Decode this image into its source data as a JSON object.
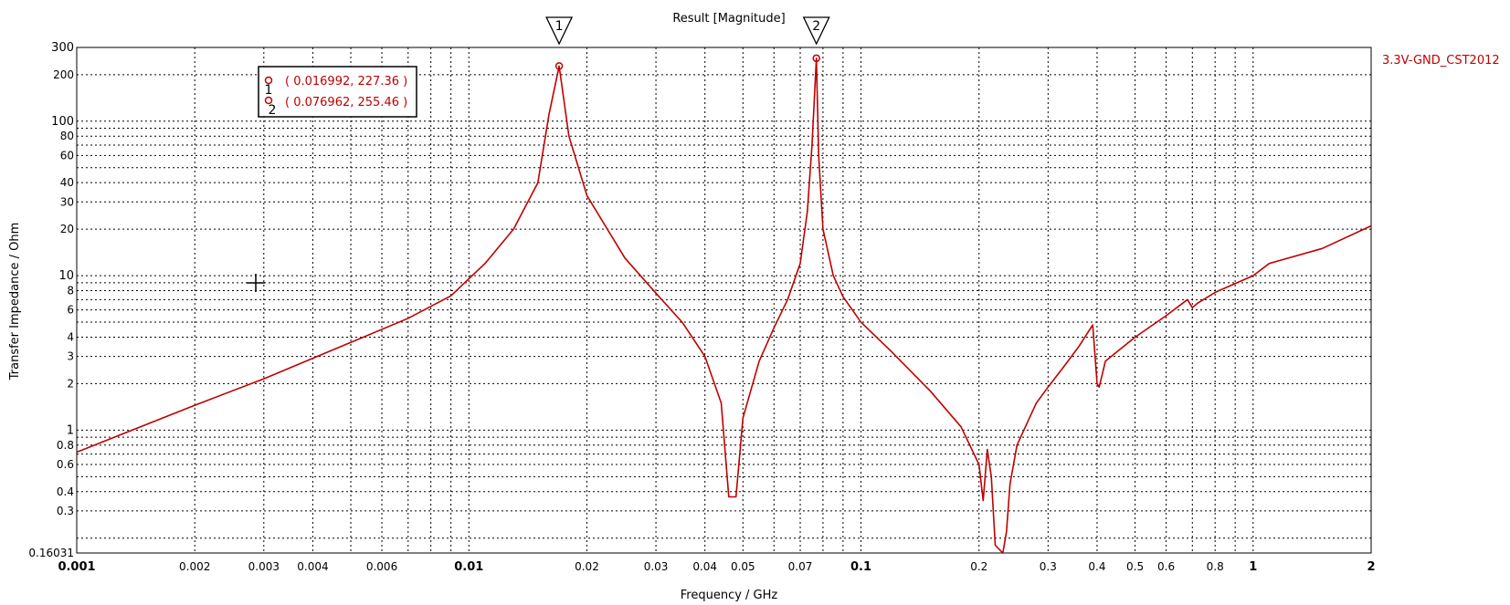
{
  "chart_data": {
    "type": "line",
    "title": "Result [Magnitude]",
    "xlabel": "Frequency / GHz",
    "ylabel": "Transfer Impedance / Ohm",
    "x_scale": "log",
    "y_scale": "log",
    "xlim": [
      0.001,
      2
    ],
    "ylim": [
      0.16031,
      300
    ],
    "grid": true,
    "x_major_ticks": [
      {
        "value": 0.001,
        "label": "0.001"
      },
      {
        "value": 0.01,
        "label": "0.01"
      },
      {
        "value": 0.1,
        "label": "0.1"
      },
      {
        "value": 1,
        "label": "1"
      },
      {
        "value": 2,
        "label": "2"
      }
    ],
    "x_minor_ticks": [
      {
        "value": 0.002,
        "label": "0.002"
      },
      {
        "value": 0.003,
        "label": "0.003"
      },
      {
        "value": 0.004,
        "label": "0.004"
      },
      {
        "value": 0.006,
        "label": "0.006"
      },
      {
        "value": 0.02,
        "label": "0.02"
      },
      {
        "value": 0.03,
        "label": "0.03"
      },
      {
        "value": 0.04,
        "label": "0.04"
      },
      {
        "value": 0.05,
        "label": "0.05"
      },
      {
        "value": 0.07,
        "label": "0.07"
      },
      {
        "value": 0.2,
        "label": "0.2"
      },
      {
        "value": 0.3,
        "label": "0.3"
      },
      {
        "value": 0.4,
        "label": "0.4"
      },
      {
        "value": 0.5,
        "label": "0.5"
      },
      {
        "value": 0.6,
        "label": "0.6"
      },
      {
        "value": 0.8,
        "label": "0.8"
      }
    ],
    "x_gridlines": [
      0.002,
      0.003,
      0.004,
      0.005,
      0.006,
      0.007,
      0.008,
      0.009,
      0.01,
      0.02,
      0.03,
      0.04,
      0.05,
      0.06,
      0.07,
      0.08,
      0.09,
      0.1,
      0.2,
      0.3,
      0.4,
      0.5,
      0.6,
      0.7,
      0.8,
      0.9,
      1
    ],
    "y_major_ticks": [
      {
        "value": 1,
        "label": "1"
      },
      {
        "value": 10,
        "label": "10"
      },
      {
        "value": 100,
        "label": "100"
      },
      {
        "value": 300,
        "label": "300"
      }
    ],
    "y_minor_ticks": [
      {
        "value": 0.16031,
        "label": "0.16031"
      },
      {
        "value": 0.3,
        "label": "0.3"
      },
      {
        "value": 0.4,
        "label": "0.4"
      },
      {
        "value": 0.6,
        "label": "0.6"
      },
      {
        "value": 0.8,
        "label": "0.8"
      },
      {
        "value": 2,
        "label": "2"
      },
      {
        "value": 3,
        "label": "3"
      },
      {
        "value": 4,
        "label": "4"
      },
      {
        "value": 6,
        "label": "6"
      },
      {
        "value": 8,
        "label": "8"
      },
      {
        "value": 20,
        "label": "20"
      },
      {
        "value": 30,
        "label": "30"
      },
      {
        "value": 40,
        "label": "40"
      },
      {
        "value": 60,
        "label": "60"
      },
      {
        "value": 80,
        "label": "80"
      },
      {
        "value": 200,
        "label": "200"
      }
    ],
    "y_gridlines": [
      0.2,
      0.3,
      0.4,
      0.5,
      0.6,
      0.7,
      0.8,
      0.9,
      1,
      2,
      3,
      4,
      5,
      6,
      7,
      8,
      9,
      10,
      20,
      30,
      40,
      50,
      60,
      70,
      80,
      90,
      100,
      200
    ],
    "series": [
      {
        "name": "3.3V-GND_CST2012",
        "color": "#c00000",
        "x": [
          0.001,
          0.002,
          0.003,
          0.005,
          0.007,
          0.009,
          0.011,
          0.013,
          0.015,
          0.016,
          0.016992,
          0.018,
          0.02,
          0.025,
          0.03,
          0.035,
          0.04,
          0.044,
          0.046,
          0.047,
          0.048,
          0.05,
          0.055,
          0.06,
          0.065,
          0.07,
          0.073,
          0.075,
          0.076962,
          0.078,
          0.08,
          0.085,
          0.09,
          0.1,
          0.12,
          0.15,
          0.18,
          0.2,
          0.205,
          0.21,
          0.215,
          0.22,
          0.23,
          0.235,
          0.24,
          0.25,
          0.28,
          0.3,
          0.33,
          0.36,
          0.39,
          0.4,
          0.405,
          0.42,
          0.5,
          0.6,
          0.68,
          0.7,
          0.72,
          0.8,
          1,
          1.1,
          1.5,
          2
        ],
        "y": [
          0.72,
          1.45,
          2.15,
          3.7,
          5.3,
          7.4,
          12,
          20,
          40,
          110,
          227.36,
          80,
          33,
          13,
          7.7,
          5,
          3,
          1.5,
          0.37,
          0.37,
          0.37,
          1.2,
          2.8,
          4.6,
          7,
          12,
          26,
          70,
          255.46,
          60,
          20,
          10,
          7.3,
          5,
          3.2,
          1.8,
          1.05,
          0.6,
          0.35,
          0.75,
          0.5,
          0.18,
          0.16031,
          0.22,
          0.45,
          0.8,
          1.5,
          1.9,
          2.6,
          3.5,
          4.8,
          2,
          1.9,
          2.8,
          4,
          5.5,
          7,
          6.2,
          6.6,
          7.8,
          10,
          12,
          15,
          21
        ]
      }
    ],
    "markers": [
      {
        "label": "1",
        "x": 0.016992,
        "y": 227.36,
        "readout": "( 0.016992, 227.36 )"
      },
      {
        "label": "2",
        "x": 0.076962,
        "y": 255.46,
        "readout": "( 0.076962, 255.46 )"
      }
    ],
    "legend": {
      "placement": "top-right",
      "entries": [
        "3.3V-GND_CST2012"
      ]
    }
  }
}
